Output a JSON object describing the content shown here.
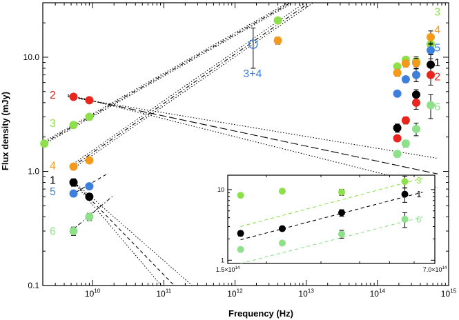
{
  "chart_data": {
    "type": "scatter",
    "title": "",
    "xlabel": "Frequency (Hz)",
    "ylabel": "Flux density (mJy)",
    "xscale": "log",
    "yscale": "log",
    "xlim": [
      2000000000,
      1000000000000000
    ],
    "ylim": [
      0.1,
      30
    ],
    "x_ticks": [
      {
        "value": 10000000000,
        "label": "10",
        "exp": "10"
      },
      {
        "value": 100000000000,
        "label": "10",
        "exp": "11"
      },
      {
        "value": 1000000000000,
        "label": "10",
        "exp": "12"
      },
      {
        "value": 10000000000000,
        "label": "10",
        "exp": "13"
      },
      {
        "value": 100000000000000,
        "label": "10",
        "exp": "14"
      },
      {
        "value": 1000000000000000,
        "label": "10",
        "exp": "15"
      }
    ],
    "y_ticks": [
      {
        "value": 0.1,
        "label": "0.1"
      },
      {
        "value": 1,
        "label": "1.0"
      },
      {
        "value": 10,
        "label": "10.0"
      }
    ],
    "colors": {
      "e1": "#000000",
      "e2": "#e8261e",
      "e3": "#8ee04a",
      "e4": "#f39a1c",
      "e5": "#3f7fdc",
      "e6": "#8ee08a",
      "e34": "#3f7fdc"
    },
    "series": [
      {
        "name": "1",
        "color_key": "e1",
        "points": [
          [
            5400000000,
            0.8,
            0.06
          ],
          [
            9000000000,
            0.6,
            0.04
          ],
          [
            190000000000000,
            2.4,
            0.2
          ],
          [
            350000000000000,
            4.7,
            0.5
          ],
          [
            560000000000000,
            8.6,
            2.0
          ]
        ]
      },
      {
        "name": "2",
        "color_key": "e2",
        "points": [
          [
            5400000000,
            4.5,
            0.25
          ],
          [
            9000000000,
            4.2,
            0.2
          ],
          [
            190000000000000,
            1.95,
            0.12
          ],
          [
            250000000000000,
            2.8,
            0.2
          ],
          [
            350000000000000,
            4.0,
            0.5
          ],
          [
            560000000000000,
            7.0,
            1.3
          ]
        ]
      },
      {
        "name": "3",
        "color_key": "e3",
        "points": [
          [
            2100000000,
            1.75,
            0.1
          ],
          [
            5400000000,
            2.55,
            0.12
          ],
          [
            9000000000,
            3.0,
            0.12
          ],
          [
            4000000000000,
            21.0,
            1.2
          ],
          [
            190000000000000,
            8.3,
            0.5
          ],
          [
            250000000000000,
            9.5,
            0.5
          ],
          [
            350000000000000,
            9.2,
            0.9
          ],
          [
            560000000000000,
            13.0,
            2.5
          ]
        ]
      },
      {
        "name": "4",
        "color_key": "e4",
        "points": [
          [
            5400000000,
            1.1,
            0.06
          ],
          [
            9000000000,
            1.25,
            0.06
          ],
          [
            4000000000000,
            14.0,
            1.0
          ],
          [
            190000000000000,
            7.3,
            0.5
          ],
          [
            250000000000000,
            8.8,
            0.6
          ],
          [
            350000000000000,
            8.9,
            0.9
          ],
          [
            560000000000000,
            15.0,
            2.0
          ]
        ]
      },
      {
        "name": "5",
        "color_key": "e5",
        "points": [
          [
            5400000000,
            0.64,
            0.04
          ],
          [
            9000000000,
            0.74,
            0.04
          ],
          [
            190000000000000,
            4.8,
            0.3
          ],
          [
            250000000000000,
            6.4,
            0.4
          ],
          [
            350000000000000,
            7.0,
            0.9
          ],
          [
            560000000000000,
            11.5,
            1.8
          ]
        ]
      },
      {
        "name": "6",
        "color_key": "e6",
        "points": [
          [
            5400000000,
            0.3,
            0.025
          ],
          [
            9000000000,
            0.4,
            0.03
          ],
          [
            190000000000000,
            1.42,
            0.09
          ],
          [
            250000000000000,
            1.75,
            0.12
          ],
          [
            350000000000000,
            2.35,
            0.3
          ],
          [
            560000000000000,
            3.8,
            0.9
          ]
        ]
      },
      {
        "name": "3+4",
        "color_key": "e34",
        "open": true,
        "points": [
          [
            1800000000000,
            13.0,
            5.0
          ]
        ]
      }
    ],
    "labels": [
      {
        "text": "2",
        "color_key": "e2",
        "x": 2500000000,
        "y": 4.7
      },
      {
        "text": "3",
        "color_key": "e3",
        "x": 2500000000,
        "y": 2.65
      },
      {
        "text": "4",
        "color_key": "e4",
        "x": 2500000000,
        "y": 1.13
      },
      {
        "text": "1",
        "color_key": "e1",
        "x": 2500000000,
        "y": 0.84
      },
      {
        "text": "5",
        "color_key": "e5",
        "x": 2500000000,
        "y": 0.67
      },
      {
        "text": "6",
        "color_key": "e6",
        "x": 2500000000,
        "y": 0.3
      },
      {
        "text": "3+4",
        "color_key": "e34",
        "x": 1300000000000,
        "y": 7.2
      },
      {
        "text": "3",
        "color_key": "e3",
        "x": 630000000000000,
        "y": 25
      },
      {
        "text": "4",
        "color_key": "e4",
        "x": 630000000000000,
        "y": 17.5
      },
      {
        "text": "5",
        "color_key": "e5",
        "x": 630000000000000,
        "y": 12.2
      },
      {
        "text": "1",
        "color_key": "e1",
        "x": 630000000000000,
        "y": 9.0
      },
      {
        "text": "2",
        "color_key": "e2",
        "x": 630000000000000,
        "y": 6.8
      },
      {
        "text": "6",
        "color_key": "e6",
        "x": 630000000000000,
        "y": 3.7
      }
    ],
    "fit_lines": [
      {
        "style": "dashdot",
        "points": [
          [
            2000000000,
            1.75
          ],
          [
            6000000000000,
            30
          ]
        ]
      },
      {
        "style": "dotted",
        "points": [
          [
            2000000000,
            1.7
          ],
          [
            6500000000000,
            30
          ]
        ]
      },
      {
        "style": "dotted",
        "points": [
          [
            2000000000,
            1.8
          ],
          [
            5500000000000,
            30
          ]
        ]
      },
      {
        "style": "dashdot",
        "points": [
          [
            5000000000,
            1.08
          ],
          [
            11000000000000,
            30
          ]
        ]
      },
      {
        "style": "dotted",
        "points": [
          [
            5000000000,
            1.03
          ],
          [
            12500000000000,
            30
          ]
        ]
      },
      {
        "style": "dotted",
        "points": [
          [
            5000000000,
            1.13
          ],
          [
            9500000000000,
            30
          ]
        ]
      },
      {
        "style": "longdash",
        "points": [
          [
            4500000000,
            4.6
          ],
          [
            700000000000000,
            0.95
          ]
        ]
      },
      {
        "style": "dotted",
        "points": [
          [
            4500000000,
            4.5
          ],
          [
            700000000000000,
            1.3
          ]
        ]
      },
      {
        "style": "dotted",
        "points": [
          [
            4500000000,
            4.7
          ],
          [
            700000000000000,
            0.72
          ]
        ]
      },
      {
        "style": "dashed",
        "points": [
          [
            5000000000,
            0.62
          ],
          [
            16000000000,
            0.95
          ]
        ]
      },
      {
        "style": "dashdot",
        "points": [
          [
            5000000000,
            0.3
          ],
          [
            20000000000,
            0.62
          ]
        ]
      },
      {
        "style": "dashed",
        "points": [
          [
            5000000000,
            0.85
          ],
          [
            140000000000,
            0.1
          ]
        ]
      },
      {
        "style": "dotted",
        "points": [
          [
            5000000000,
            0.85
          ],
          [
            92000000000,
            0.1
          ]
        ]
      },
      {
        "style": "dotted",
        "points": [
          [
            5000000000,
            0.85
          ],
          [
            250000000000,
            0.1
          ]
        ]
      }
    ],
    "inset": {
      "xscale": "log",
      "yscale": "log",
      "xlim": [
        150000000000000,
        700000000000000
      ],
      "ylim": [
        0.9,
        16
      ],
      "x_ticks": [
        {
          "value": 150000000000000,
          "label": "1.5×10",
          "exp": "14"
        },
        {
          "value": 700000000000000,
          "label": "7.0×10",
          "exp": "14"
        }
      ],
      "y_ticks": [
        {
          "value": 1,
          "label": "1"
        },
        {
          "value": 10,
          "label": "10"
        }
      ],
      "series": [
        {
          "name": "3",
          "color_key": "e3",
          "points": [
            [
              165000000000000,
              8.3,
              0.5
            ],
            [
              225000000000000,
              9.5,
              0.5
            ],
            [
              350000000000000,
              9.2,
              0.9
            ],
            [
              560000000000000,
              13.0,
              2.5
            ]
          ]
        },
        {
          "name": "1",
          "color_key": "e1",
          "points": [
            [
              165000000000000,
              2.4,
              0.2
            ],
            [
              225000000000000,
              2.8,
              0.2
            ],
            [
              350000000000000,
              4.7,
              0.5
            ],
            [
              560000000000000,
              8.6,
              2.0
            ]
          ]
        },
        {
          "name": "6",
          "color_key": "e6",
          "points": [
            [
              165000000000000,
              1.42,
              0.09
            ],
            [
              225000000000000,
              1.75,
              0.12
            ],
            [
              350000000000000,
              2.35,
              0.3
            ],
            [
              560000000000000,
              3.8,
              0.9
            ]
          ]
        }
      ],
      "fit_lines": [
        {
          "color_key": "e3",
          "style": "dashed",
          "points": [
            [
              165000000000000,
              3.0
            ],
            [
              640000000000000,
              14.5
            ]
          ]
        },
        {
          "color_key": "e1",
          "style": "dashed",
          "points": [
            [
              165000000000000,
              1.95
            ],
            [
              640000000000000,
              9.2
            ]
          ]
        },
        {
          "color_key": "e6",
          "style": "dashed",
          "points": [
            [
              165000000000000,
              0.9
            ],
            [
              640000000000000,
              4.1
            ]
          ]
        }
      ],
      "labels": [
        {
          "text": "3",
          "color_key": "e3",
          "x": 610000000000000,
          "y": 13.5
        },
        {
          "text": "1",
          "color_key": "e1",
          "x": 610000000000000,
          "y": 8.6
        },
        {
          "text": "6",
          "color_key": "e6",
          "x": 610000000000000,
          "y": 3.8
        }
      ]
    }
  }
}
